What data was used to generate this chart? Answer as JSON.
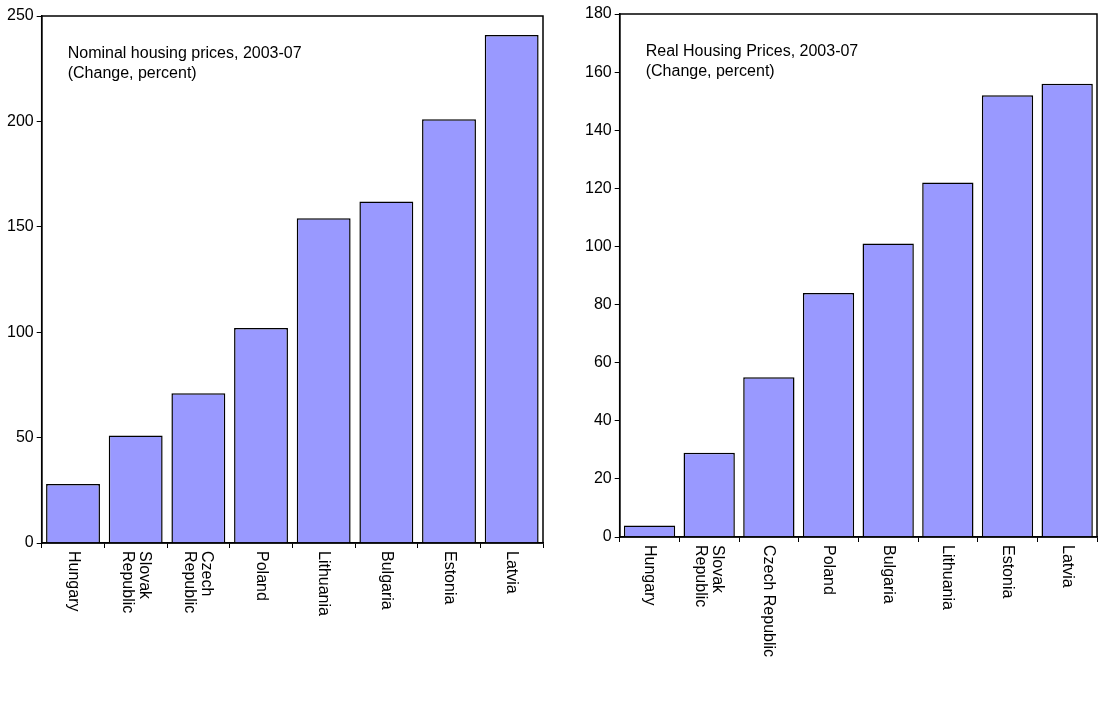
{
  "chart_data": [
    {
      "type": "bar",
      "title": "Nominal housing prices, 2003-07",
      "subtitle": "(Change, percent)",
      "categories": [
        "Hungary",
        "Slovak Republic",
        "Czech Republic",
        "Poland",
        "Lithuania",
        "Bulgaria",
        "Estonia",
        "Latvia"
      ],
      "values": [
        28,
        51,
        71,
        102,
        154,
        162,
        201,
        241
      ],
      "color": "#9999ff",
      "ylim": [
        0,
        250
      ],
      "yticks": [
        0,
        50,
        100,
        150,
        200,
        250
      ]
    },
    {
      "type": "bar",
      "title": "Real Housing Prices, 2003-07",
      "subtitle": "(Change, percent)",
      "categories": [
        "Hungary",
        "Slovak Republic",
        "Czech Republic",
        "Poland",
        "Bulgaria",
        "Lithuania",
        "Estonia",
        "Latvia"
      ],
      "values": [
        4,
        29,
        55,
        84,
        101,
        122,
        152,
        156
      ],
      "color": "#9999ff",
      "ylim": [
        0,
        180
      ],
      "yticks": [
        0,
        20,
        40,
        60,
        80,
        100,
        120,
        140,
        160,
        180
      ]
    }
  ]
}
